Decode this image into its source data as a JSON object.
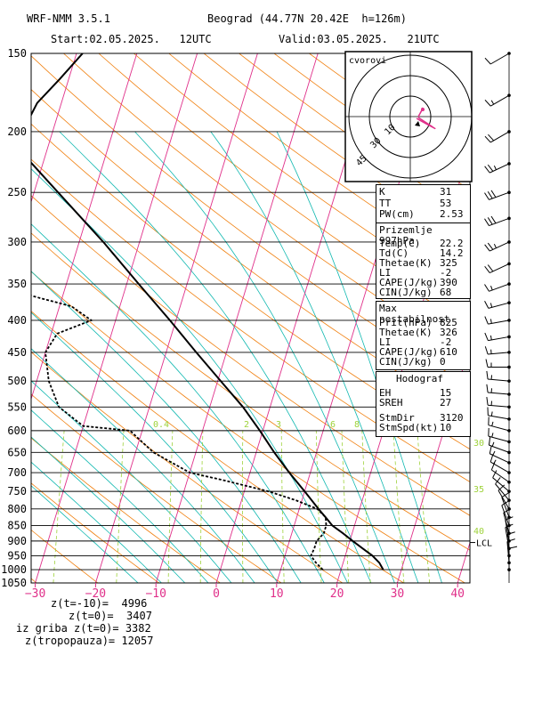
{
  "header": {
    "model": "WRF-NMM 3.5.1",
    "location": "Beograd (44.77N 20.42E  h=126m)",
    "start": "Start:02.05.2025.   12UTC",
    "valid": "Valid:03.05.2025.   21UTC"
  },
  "hodograph": {
    "label": "cvorovi",
    "ring_labels": [
      "10",
      "30",
      "45"
    ]
  },
  "indices": [
    {
      "key": "K",
      "value": "31"
    },
    {
      "key": "TT",
      "value": "53"
    },
    {
      "key": "PW(cm)",
      "value": "2.53"
    }
  ],
  "surface": {
    "title": "Prizemlje 997hPa",
    "rows": [
      {
        "key": "Temp(C)",
        "value": "22.2"
      },
      {
        "key": "Td(C)",
        "value": "14.2"
      },
      {
        "key": "Thetae(K)",
        "value": "325"
      },
      {
        "key": "LI",
        "value": "-2"
      },
      {
        "key": "CAPE(J/kg)",
        "value": "390"
      },
      {
        "key": "CIN(J/kg)",
        "value": "68"
      }
    ]
  },
  "max_instability": {
    "title": "Max nestabilnost",
    "rows": [
      {
        "key": "Prit(hPa)",
        "value": "825"
      },
      {
        "key": "Thetae(K)",
        "value": "326"
      },
      {
        "key": "LI",
        "value": "-2"
      },
      {
        "key": "CAPE(J/kg)",
        "value": "610"
      },
      {
        "key": "CIN(J/kg)",
        "value": "0"
      }
    ]
  },
  "hodograph_stats": {
    "title": "Hodograf",
    "rows": [
      {
        "key": "EH",
        "value": "15"
      },
      {
        "key": "SREH",
        "value": "27"
      },
      {
        "key": "StmDir",
        "value": "3120"
      },
      {
        "key": "StmSpd(kt)",
        "value": "10"
      }
    ]
  },
  "footer": [
    "z(t=-10)=  4996",
    "z(t=0)=  3407",
    "iz griba z(t=0)= 3382",
    "z(tropopauza)= 12057"
  ],
  "colors": {
    "temperature": "#000000",
    "dewpoint": "#000000",
    "isotherm": "#e0308a",
    "dry_adiabat": "#f08010",
    "moist_adiabat": "#10b8b0",
    "mixing_ratio": "#9ed23a",
    "axis_labels": "#e0308a"
  },
  "chart_data": {
    "type": "skew-t",
    "pressure_levels_hPa": [
      150,
      200,
      250,
      300,
      350,
      400,
      450,
      500,
      550,
      600,
      650,
      700,
      750,
      800,
      850,
      900,
      950,
      1000,
      1050
    ],
    "x_ticks_C": [
      -30,
      -20,
      -10,
      0,
      10,
      20,
      30,
      40
    ],
    "xlim_C": [
      -30,
      42
    ],
    "mixing_ratio_labels": [
      "0.4",
      "2",
      "3",
      "6",
      "8"
    ],
    "lcl_label": "LCL",
    "lcl_pressure_hPa": 905,
    "barb_speed_labels": [
      "30",
      "35",
      "40"
    ],
    "temperature_profile": [
      {
        "p": 1000,
        "t": 27.0
      },
      {
        "p": 975,
        "t": 26.0
      },
      {
        "p": 950,
        "t": 24.5
      },
      {
        "p": 925,
        "t": 22.5
      },
      {
        "p": 900,
        "t": 20.5
      },
      {
        "p": 875,
        "t": 18.5
      },
      {
        "p": 850,
        "t": 16.3
      },
      {
        "p": 825,
        "t": 14.8
      },
      {
        "p": 800,
        "t": 13.2
      },
      {
        "p": 750,
        "t": 10.0
      },
      {
        "p": 700,
        "t": 6.5
      },
      {
        "p": 650,
        "t": 3.0
      },
      {
        "p": 600,
        "t": -0.5
      },
      {
        "p": 550,
        "t": -4.5
      },
      {
        "p": 500,
        "t": -9.5
      },
      {
        "p": 450,
        "t": -15.0
      },
      {
        "p": 400,
        "t": -21.0
      },
      {
        "p": 350,
        "t": -28.0
      },
      {
        "p": 300,
        "t": -36.0
      },
      {
        "p": 250,
        "t": -46.0
      },
      {
        "p": 220,
        "t": -53.0
      },
      {
        "p": 200,
        "t": -55.0
      },
      {
        "p": 180,
        "t": -54.0
      },
      {
        "p": 165,
        "t": -51.5
      },
      {
        "p": 150,
        "t": -49.0
      }
    ],
    "dewpoint_profile": [
      {
        "p": 1000,
        "t": 17.0
      },
      {
        "p": 975,
        "t": 15.5
      },
      {
        "p": 950,
        "t": 14.3
      },
      {
        "p": 925,
        "t": 14.5
      },
      {
        "p": 900,
        "t": 14.5
      },
      {
        "p": 875,
        "t": 15.3
      },
      {
        "p": 850,
        "t": 15.3
      },
      {
        "p": 825,
        "t": 14.8
      },
      {
        "p": 800,
        "t": 13.0
      },
      {
        "p": 775,
        "t": 9.0
      },
      {
        "p": 750,
        "t": 4.0
      },
      {
        "p": 720,
        "t": -4.0
      },
      {
        "p": 700,
        "t": -10.0
      },
      {
        "p": 650,
        "t": -17.0
      },
      {
        "p": 620,
        "t": -20.0
      },
      {
        "p": 600,
        "t": -22.0
      },
      {
        "p": 590,
        "t": -30.0
      },
      {
        "p": 550,
        "t": -35.0
      },
      {
        "p": 500,
        "t": -38.0
      },
      {
        "p": 450,
        "t": -40.0
      },
      {
        "p": 420,
        "t": -39.0
      },
      {
        "p": 400,
        "t": -34.0
      },
      {
        "p": 380,
        "t": -38.0
      },
      {
        "p": 360,
        "t": -48.0
      },
      {
        "p": 350,
        "t": -62.0
      },
      {
        "p": 335,
        "t": -60.0
      },
      {
        "p": 320,
        "t": -62.0
      },
      {
        "p": 300,
        "t": -66.0
      },
      {
        "p": 270,
        "t": -72.0
      },
      {
        "p": 250,
        "t": -77.0
      },
      {
        "p": 200,
        "t": -80.0
      },
      {
        "p": 175,
        "t": -77.0
      },
      {
        "p": 160,
        "t": -75.0
      },
      {
        "p": 150,
        "t": -72.0
      }
    ],
    "wind_barbs": [
      {
        "p": 150,
        "speed_kt": 10,
        "dir": 240
      },
      {
        "p": 175,
        "speed_kt": 15,
        "dir": 240
      },
      {
        "p": 200,
        "speed_kt": 20,
        "dir": 240
      },
      {
        "p": 225,
        "speed_kt": 25,
        "dir": 245
      },
      {
        "p": 250,
        "speed_kt": 30,
        "dir": 250
      },
      {
        "p": 275,
        "speed_kt": 30,
        "dir": 250
      },
      {
        "p": 300,
        "speed_kt": 25,
        "dir": 245
      },
      {
        "p": 325,
        "speed_kt": 20,
        "dir": 245
      },
      {
        "p": 350,
        "speed_kt": 15,
        "dir": 250
      },
      {
        "p": 375,
        "speed_kt": 15,
        "dir": 255
      },
      {
        "p": 400,
        "speed_kt": 15,
        "dir": 260
      },
      {
        "p": 425,
        "speed_kt": 15,
        "dir": 260
      },
      {
        "p": 450,
        "speed_kt": 15,
        "dir": 265
      },
      {
        "p": 475,
        "speed_kt": 15,
        "dir": 270
      },
      {
        "p": 500,
        "speed_kt": 15,
        "dir": 275
      },
      {
        "p": 525,
        "speed_kt": 15,
        "dir": 275
      },
      {
        "p": 550,
        "speed_kt": 15,
        "dir": 275
      },
      {
        "p": 575,
        "speed_kt": 15,
        "dir": 280
      },
      {
        "p": 600,
        "speed_kt": 15,
        "dir": 285
      },
      {
        "p": 625,
        "speed_kt": 15,
        "dir": 285
      },
      {
        "p": 650,
        "speed_kt": 15,
        "dir": 290
      },
      {
        "p": 675,
        "speed_kt": 15,
        "dir": 295
      },
      {
        "p": 700,
        "speed_kt": 15,
        "dir": 300
      },
      {
        "p": 725,
        "speed_kt": 10,
        "dir": 305
      },
      {
        "p": 750,
        "speed_kt": 10,
        "dir": 310
      },
      {
        "p": 775,
        "speed_kt": 10,
        "dir": 320
      },
      {
        "p": 800,
        "speed_kt": 10,
        "dir": 330
      },
      {
        "p": 825,
        "speed_kt": 10,
        "dir": 340
      },
      {
        "p": 850,
        "speed_kt": 10,
        "dir": 340
      },
      {
        "p": 875,
        "speed_kt": 10,
        "dir": 345
      },
      {
        "p": 900,
        "speed_kt": 10,
        "dir": 350
      },
      {
        "p": 925,
        "speed_kt": 10,
        "dir": 350
      },
      {
        "p": 950,
        "speed_kt": 10,
        "dir": 355
      },
      {
        "p": 975,
        "speed_kt": 10,
        "dir": 355
      },
      {
        "p": 1000,
        "speed_kt": 10,
        "dir": 0
      }
    ]
  }
}
